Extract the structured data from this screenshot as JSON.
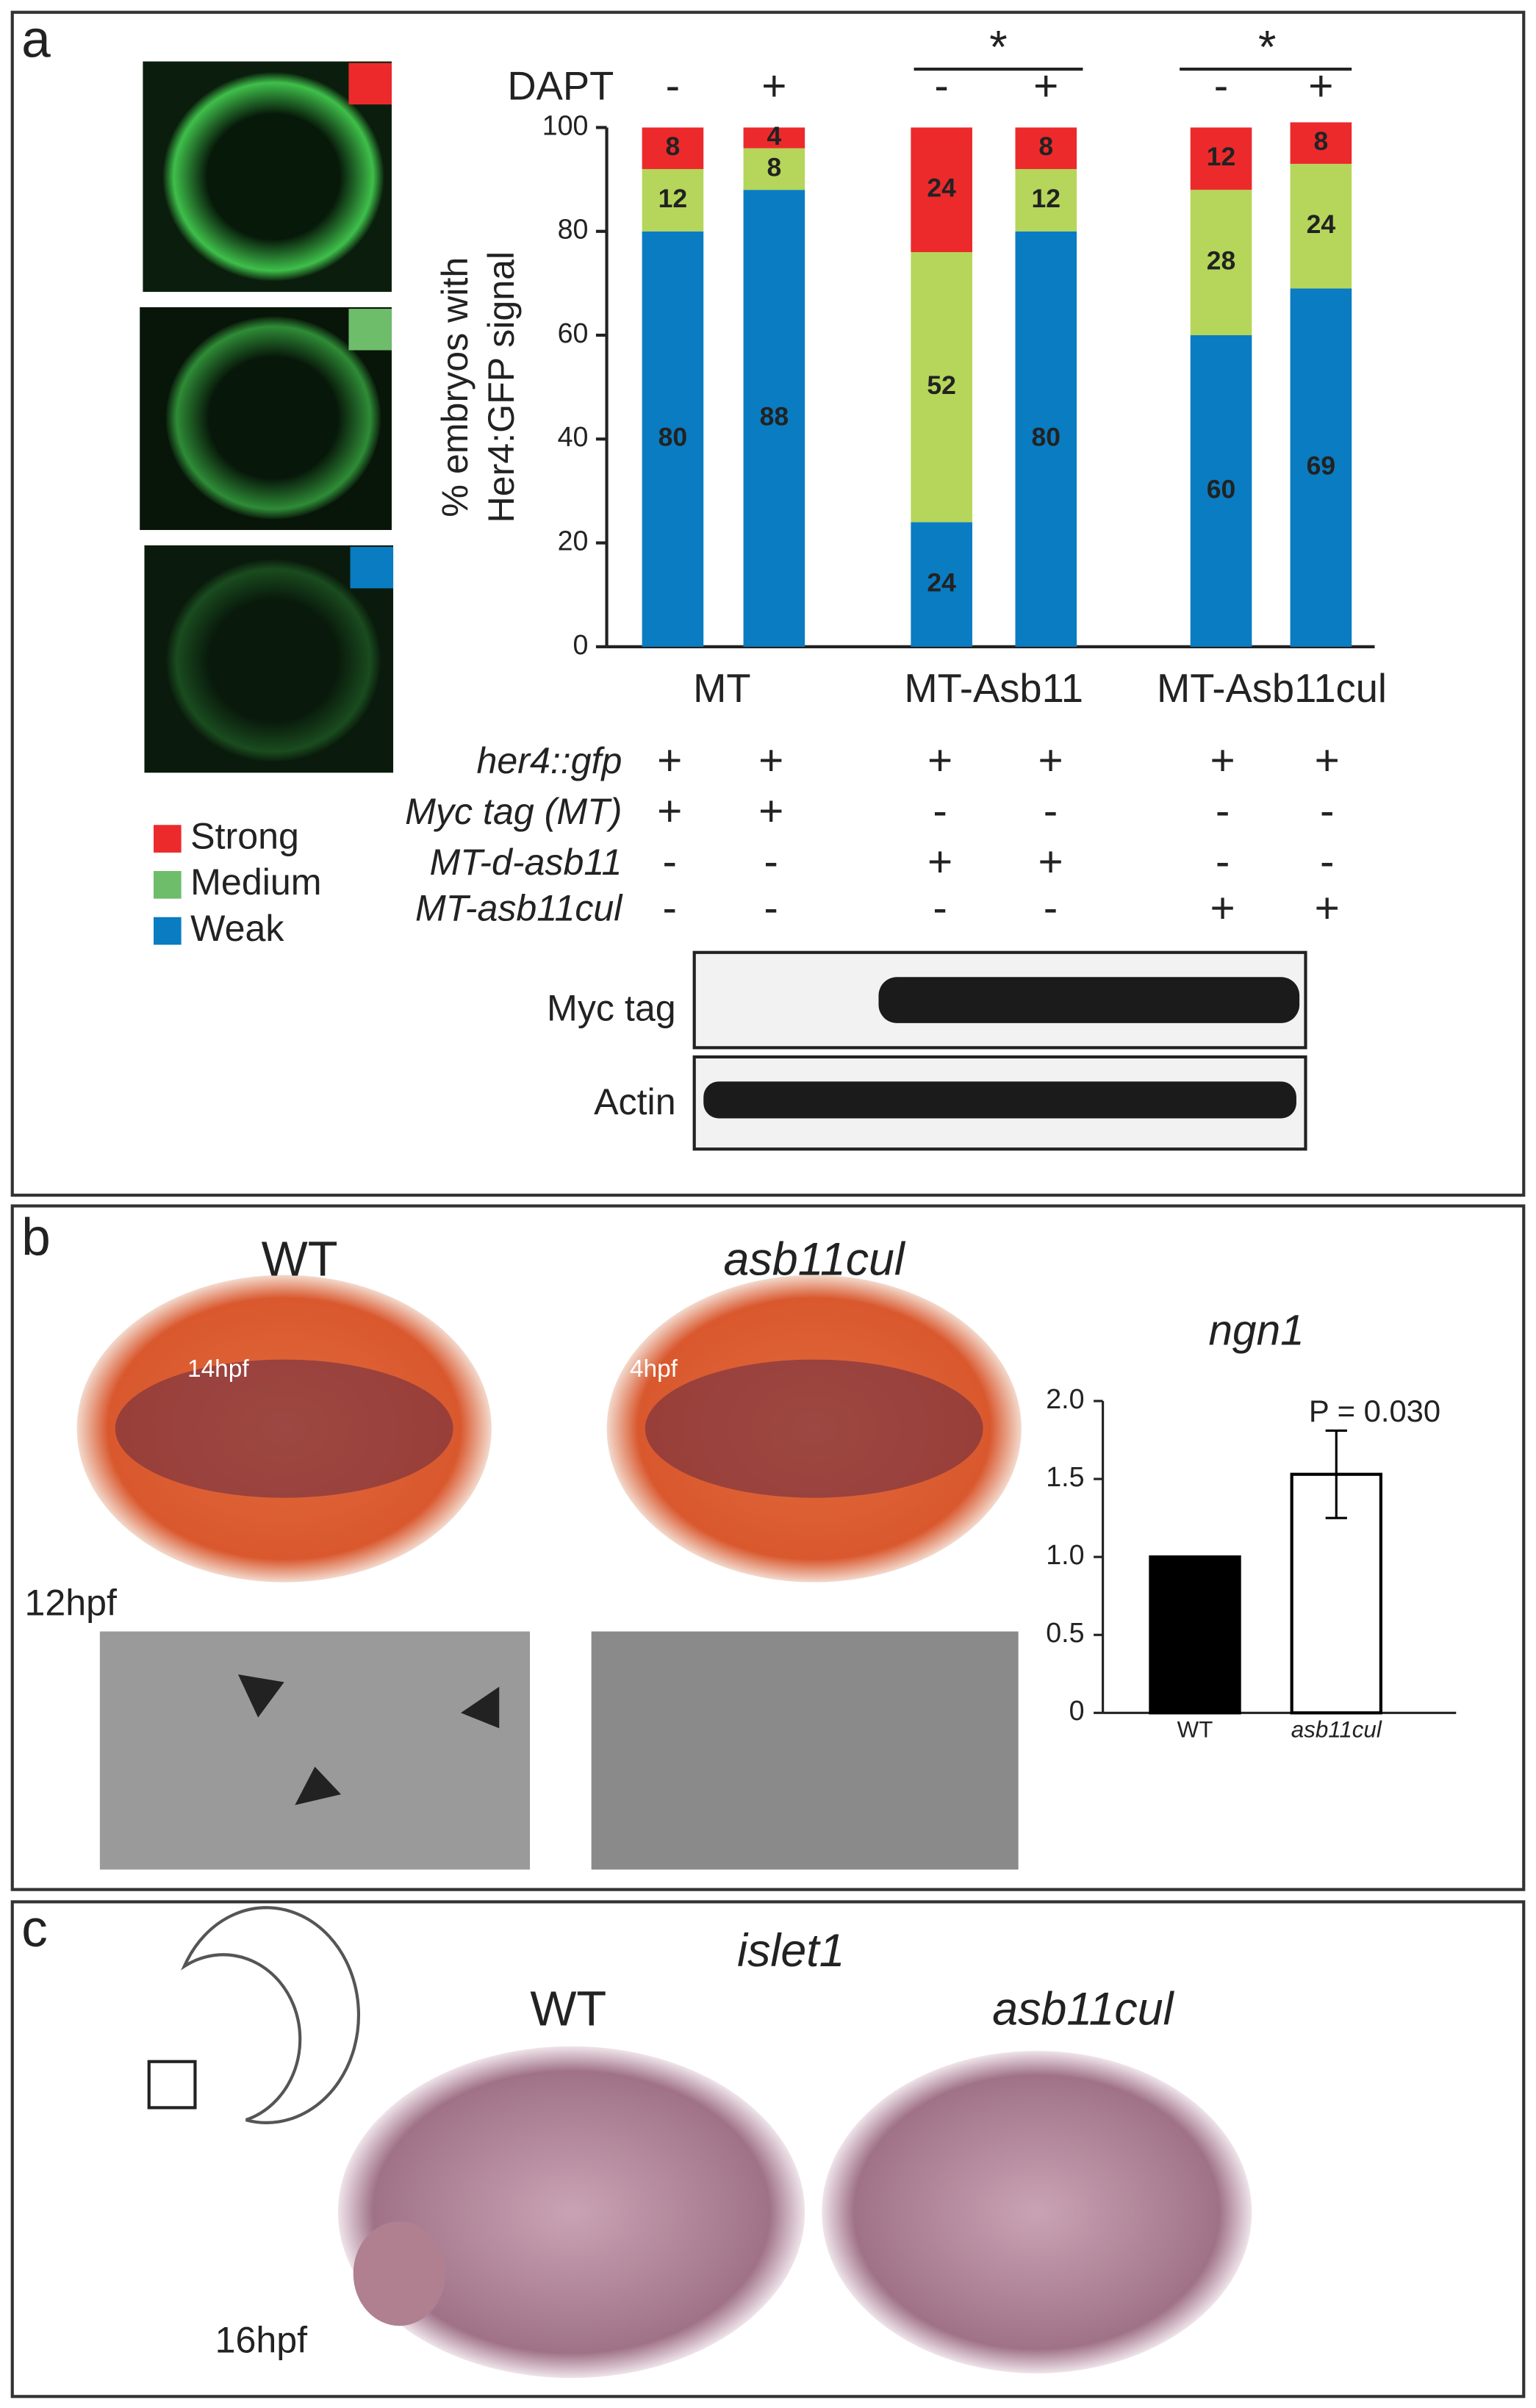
{
  "panels": {
    "a": "a",
    "b": "b",
    "c": "c"
  },
  "chart_data": [
    {
      "type": "stacked-bar",
      "x_label": "DAPT",
      "y_label": [
        "% embryos with",
        "Her4:GFP signal"
      ],
      "categories": [
        "-",
        "+",
        "-",
        "+",
        "-",
        "+"
      ],
      "groups": [
        "MT",
        "MT-Asb11",
        "MT-Asb11cul"
      ],
      "significance": [
        "*",
        "*"
      ],
      "series": [
        {
          "name": "Weak",
          "color": "#0a7cc1",
          "values": [
            80,
            88,
            24,
            80,
            60,
            69
          ]
        },
        {
          "name": "Medium",
          "color": "#b5d65a",
          "values": [
            12,
            8,
            52,
            12,
            28,
            24
          ]
        },
        {
          "name": "Strong",
          "color": "#ec2a2c",
          "values": [
            8,
            4,
            24,
            8,
            12,
            8
          ]
        }
      ],
      "legend_colors": [
        "#ec2a2c",
        "#6dbd6b",
        "#0a7cc1"
      ],
      "ylim": [
        0,
        100
      ],
      "yticks": [
        0,
        20,
        40,
        60,
        80,
        100
      ]
    },
    {
      "type": "bar",
      "title": "ngn1",
      "categories": [
        "WT",
        "asb11cul"
      ],
      "values": [
        1.0,
        1.53
      ],
      "errors": [
        0,
        0.28
      ],
      "colors": [
        "#000000",
        "#ffffff"
      ],
      "annotation": "P = 0.030",
      "ylim": [
        0,
        2
      ],
      "yticks": [
        0,
        0.5,
        {
          "value": 1,
          "label": "1.0"
        },
        1.5,
        {
          "value": 2,
          "label": "2.0"
        }
      ]
    }
  ],
  "table": {
    "rows": [
      {
        "label": "her4::gfp",
        "cells": [
          "+",
          "+",
          "+",
          "+",
          "+",
          "+"
        ]
      },
      {
        "label": "Myc tag (MT)",
        "cells": [
          "+",
          "+",
          "-",
          "-",
          "-",
          "-"
        ]
      },
      {
        "label": "MT-d-asb11",
        "cells": [
          "-",
          "-",
          "+",
          "+",
          "-",
          "-"
        ]
      },
      {
        "label": "MT-asb11cul",
        "cells": [
          "-",
          "-",
          "-",
          "-",
          "+",
          "+"
        ]
      }
    ]
  },
  "blots": [
    "Myc tag",
    "Actin"
  ],
  "panel_b": {
    "left": "WT",
    "right": "asb11cul",
    "stage": "12hpf",
    "stamp_left": "14hpf",
    "stamp_right": "4hpf"
  },
  "panel_c": {
    "gene": "islet1",
    "left": "WT",
    "right": "asb11cul",
    "stage": "16hpf"
  }
}
